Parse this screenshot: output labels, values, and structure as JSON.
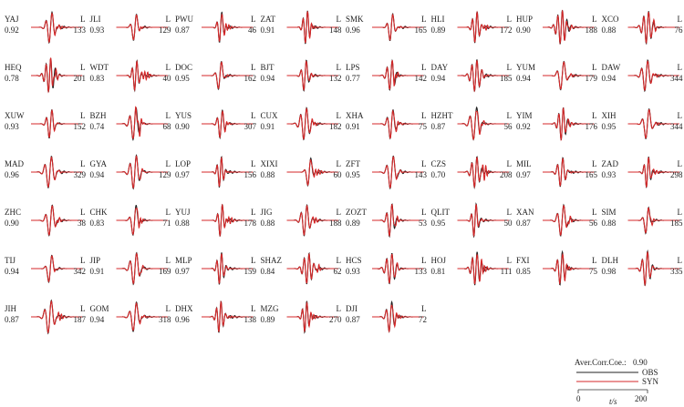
{
  "chart_data": {
    "type": "line",
    "grid": false,
    "columns": 8,
    "stations": [
      {
        "name": "YAJ",
        "cc": "0.92",
        "comp": "L",
        "dist": "133"
      },
      {
        "name": "JLI",
        "cc": "0.93",
        "comp": "L",
        "dist": "129"
      },
      {
        "name": "PWU",
        "cc": "0.87",
        "comp": "L",
        "dist": "46"
      },
      {
        "name": "ZAT",
        "cc": "0.91",
        "comp": "L",
        "dist": "148"
      },
      {
        "name": "SMK",
        "cc": "0.96",
        "comp": "L",
        "dist": "165"
      },
      {
        "name": "HLI",
        "cc": "0.89",
        "comp": "L",
        "dist": "172"
      },
      {
        "name": "HUP",
        "cc": "0.90",
        "comp": "L",
        "dist": "188"
      },
      {
        "name": "XCO",
        "cc": "0.88",
        "comp": "L",
        "dist": "76"
      },
      {
        "name": "HEQ",
        "cc": "0.78",
        "comp": "L",
        "dist": "201"
      },
      {
        "name": "WDT",
        "cc": "0.83",
        "comp": "L",
        "dist": "40"
      },
      {
        "name": "DOC",
        "cc": "0.95",
        "comp": "L",
        "dist": "162"
      },
      {
        "name": "BJT",
        "cc": "0.94",
        "comp": "L",
        "dist": "132"
      },
      {
        "name": "LPS",
        "cc": "0.77",
        "comp": "L",
        "dist": "142"
      },
      {
        "name": "DAY",
        "cc": "0.94",
        "comp": "L",
        "dist": "185"
      },
      {
        "name": "YUM",
        "cc": "0.94",
        "comp": "L",
        "dist": "179"
      },
      {
        "name": "DAW",
        "cc": "0.94",
        "comp": "L",
        "dist": "344"
      },
      {
        "name": "XUW",
        "cc": "0.93",
        "comp": "L",
        "dist": "152"
      },
      {
        "name": "BZH",
        "cc": "0.74",
        "comp": "L",
        "dist": "68"
      },
      {
        "name": "YUS",
        "cc": "0.90",
        "comp": "L",
        "dist": "307"
      },
      {
        "name": "CUX",
        "cc": "0.91",
        "comp": "L",
        "dist": "182"
      },
      {
        "name": "XHA",
        "cc": "0.91",
        "comp": "L",
        "dist": "75"
      },
      {
        "name": "HZHT",
        "cc": "0.87",
        "comp": "L",
        "dist": "56"
      },
      {
        "name": "YIM",
        "cc": "0.92",
        "comp": "L",
        "dist": "176"
      },
      {
        "name": "XIH",
        "cc": "0.95",
        "comp": "L",
        "dist": "344"
      },
      {
        "name": "MAD",
        "cc": "0.96",
        "comp": "L",
        "dist": "329"
      },
      {
        "name": "GYA",
        "cc": "0.94",
        "comp": "L",
        "dist": "129"
      },
      {
        "name": "LOP",
        "cc": "0.97",
        "comp": "L",
        "dist": "156"
      },
      {
        "name": "XIXI",
        "cc": "0.88",
        "comp": "L",
        "dist": "60"
      },
      {
        "name": "ZFT",
        "cc": "0.95",
        "comp": "L",
        "dist": "143"
      },
      {
        "name": "CZS",
        "cc": "0.70",
        "comp": "L",
        "dist": "208"
      },
      {
        "name": "MIL",
        "cc": "0.97",
        "comp": "L",
        "dist": "165"
      },
      {
        "name": "ZAD",
        "cc": "0.93",
        "comp": "L",
        "dist": "298"
      },
      {
        "name": "ZHC",
        "cc": "0.90",
        "comp": "L",
        "dist": "38"
      },
      {
        "name": "CHK",
        "cc": "0.83",
        "comp": "L",
        "dist": "71"
      },
      {
        "name": "YUJ",
        "cc": "0.88",
        "comp": "L",
        "dist": "178"
      },
      {
        "name": "JIG",
        "cc": "0.88",
        "comp": "L",
        "dist": "188"
      },
      {
        "name": "ZOZT",
        "cc": "0.89",
        "comp": "L",
        "dist": "53"
      },
      {
        "name": "QLIT",
        "cc": "0.95",
        "comp": "L",
        "dist": "50"
      },
      {
        "name": "XAN",
        "cc": "0.87",
        "comp": "L",
        "dist": "56"
      },
      {
        "name": "SIM",
        "cc": "0.88",
        "comp": "L",
        "dist": "185"
      },
      {
        "name": "TIJ",
        "cc": "0.94",
        "comp": "L",
        "dist": "342"
      },
      {
        "name": "JIP",
        "cc": "0.91",
        "comp": "L",
        "dist": "169"
      },
      {
        "name": "MLP",
        "cc": "0.97",
        "comp": "L",
        "dist": "159"
      },
      {
        "name": "SHAZ",
        "cc": "0.84",
        "comp": "L",
        "dist": "62"
      },
      {
        "name": "HCS",
        "cc": "0.93",
        "comp": "L",
        "dist": "133"
      },
      {
        "name": "HOJ",
        "cc": "0.81",
        "comp": "L",
        "dist": "111"
      },
      {
        "name": "FXI",
        "cc": "0.85",
        "comp": "L",
        "dist": "75"
      },
      {
        "name": "DLH",
        "cc": "0.98",
        "comp": "L",
        "dist": "335"
      },
      {
        "name": "JIH",
        "cc": "0.87",
        "comp": "L",
        "dist": "187"
      },
      {
        "name": "GOM",
        "cc": "0.94",
        "comp": "L",
        "dist": "318"
      },
      {
        "name": "DHX",
        "cc": "0.96",
        "comp": "L",
        "dist": "138"
      },
      {
        "name": "MZG",
        "cc": "0.89",
        "comp": "L",
        "dist": "270"
      },
      {
        "name": "DJI",
        "cc": "0.87",
        "comp": "L",
        "dist": "72"
      }
    ],
    "legend": {
      "avg_label": "Aver.Corr.Coe.:",
      "avg_value": "0.90",
      "obs_label": "OBS",
      "syn_label": "SYN",
      "obs_color": "#222222",
      "syn_color": "#d62728",
      "scale_start": "0",
      "scale_end": "200",
      "scale_unit": "t/s"
    }
  }
}
